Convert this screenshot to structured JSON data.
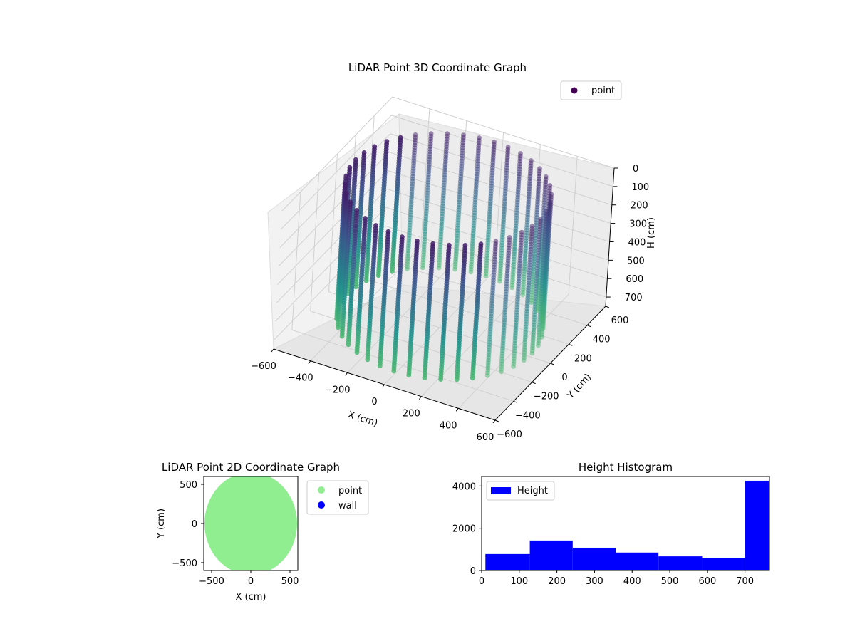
{
  "figure": {
    "width_note": ""
  },
  "chart_data": [
    {
      "type": "scatter",
      "title": "LiDAR Point 3D Coordinate Graph",
      "xlabel": "X (cm)",
      "ylabel": "Y (cm)",
      "zlabel": "H (cm)",
      "xlim": [
        -600,
        600
      ],
      "ylim": [
        -600,
        600
      ],
      "zlim": [
        750,
        0
      ],
      "x_ticks": [
        -600,
        -400,
        -200,
        0,
        200,
        400,
        600
      ],
      "y_ticks": [
        -600,
        -400,
        -200,
        0,
        200,
        400,
        600
      ],
      "z_ticks": [
        0,
        100,
        200,
        300,
        400,
        500,
        600,
        700
      ],
      "x_tick_labels": [
        "−600",
        "−400",
        "−200",
        "0",
        "200",
        "400",
        "600"
      ],
      "y_tick_labels": [
        "−600",
        "−400",
        "−200",
        "0",
        "200",
        "400",
        "600"
      ],
      "z_tick_labels": [
        "0",
        "100",
        "200",
        "300",
        "400",
        "500",
        "600",
        "700"
      ],
      "legend": {
        "label": "point",
        "placement": "upper right",
        "color": "#440154"
      },
      "colormap": "viridis",
      "description_of_data": "cylindrical wall of points radius about 500 cm, height 0-750 cm, color by height"
    },
    {
      "type": "scatter",
      "title": "LiDAR Point 2D Coordinate Graph",
      "xlabel": "X (cm)",
      "ylabel": "Y (cm)",
      "xlim": [
        -600,
        600
      ],
      "ylim": [
        -600,
        600
      ],
      "x_ticks": [
        -500,
        0,
        500
      ],
      "y_ticks": [
        -500,
        0,
        500
      ],
      "x_tick_labels": [
        "−500",
        "0",
        "500"
      ],
      "y_tick_labels": [
        "−500",
        "0",
        "500"
      ],
      "series": [
        {
          "name": "point",
          "color": "#90ee90"
        },
        {
          "name": "wall",
          "color": "#0000ff"
        }
      ],
      "legend_placement": "outside upper right"
    },
    {
      "type": "bar",
      "title": "Height Histogram",
      "xlim": [
        0,
        765
      ],
      "ylim": [
        0,
        4450
      ],
      "x_ticks": [
        0,
        100,
        200,
        300,
        400,
        500,
        600,
        700
      ],
      "y_ticks": [
        0,
        2000,
        4000
      ],
      "x_tick_labels": [
        "0",
        "100",
        "200",
        "300",
        "400",
        "500",
        "600",
        "700"
      ],
      "y_tick_labels": [
        "0",
        "2000",
        "4000"
      ],
      "bin_edges": [
        10,
        128,
        242,
        356,
        470,
        586,
        700,
        765
      ],
      "values": [
        780,
        1420,
        1080,
        850,
        670,
        600,
        4250
      ],
      "series": [
        {
          "name": "Height",
          "color": "#0000ff"
        }
      ],
      "legend_placement": "upper left"
    }
  ]
}
